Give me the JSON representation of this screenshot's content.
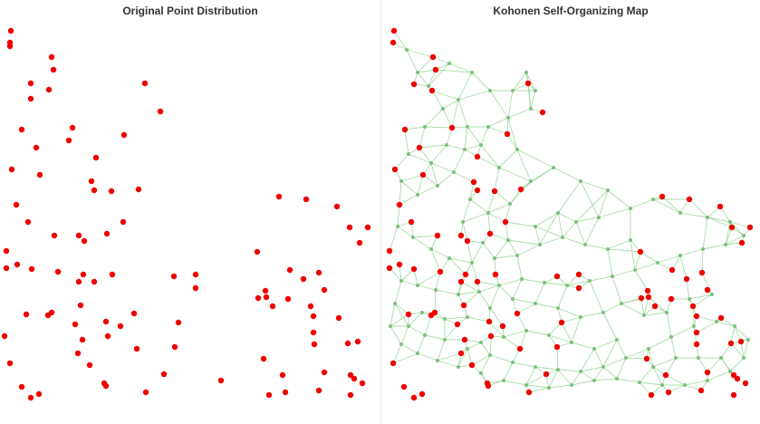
{
  "colors": {
    "point": "#ee0000",
    "point_stroke": "#aa0000",
    "neuron": "#7cc07c",
    "edge": "#8fd08f",
    "background": "#ffffff"
  },
  "chart_data": [
    {
      "type": "scatter",
      "title": "Original Point Distribution",
      "grid": false,
      "xlim": [
        0,
        420
      ],
      "ylim": [
        0,
        468
      ],
      "points": [
        [
          12,
          34
        ],
        [
          11,
          47
        ],
        [
          11,
          51
        ],
        [
          57,
          63
        ],
        [
          59,
          77
        ],
        [
          34,
          92
        ],
        [
          54,
          99
        ],
        [
          34,
          109
        ],
        [
          160,
          92
        ],
        [
          177,
          123
        ],
        [
          24,
          143
        ],
        [
          80,
          141
        ],
        [
          76,
          155
        ],
        [
          40,
          163
        ],
        [
          137,
          149
        ],
        [
          106,
          174
        ],
        [
          13,
          187
        ],
        [
          44,
          193
        ],
        [
          101,
          200
        ],
        [
          104,
          210
        ],
        [
          123,
          211
        ],
        [
          153,
          209
        ],
        [
          18,
          226
        ],
        [
          31,
          245
        ],
        [
          136,
          245
        ],
        [
          87,
          260
        ],
        [
          60,
          260
        ],
        [
          93,
          266
        ],
        [
          118,
          258
        ],
        [
          7,
          277
        ],
        [
          7,
          296
        ],
        [
          19,
          292
        ],
        [
          35,
          297
        ],
        [
          64,
          300
        ],
        [
          92,
          303
        ],
        [
          104,
          311
        ],
        [
          87,
          311
        ],
        [
          124,
          303
        ],
        [
          192,
          305
        ],
        [
          216,
          303
        ],
        [
          216,
          318
        ],
        [
          89,
          337
        ],
        [
          29,
          347
        ],
        [
          53,
          348
        ],
        [
          57,
          345
        ],
        [
          148,
          346
        ],
        [
          83,
          358
        ],
        [
          117,
          355
        ],
        [
          133,
          360
        ],
        [
          197,
          356
        ],
        [
          5,
          371
        ],
        [
          91,
          375
        ],
        [
          119,
          371
        ],
        [
          151,
          385
        ],
        [
          193,
          383
        ],
        [
          86,
          390
        ],
        [
          11,
          401
        ],
        [
          99,
          403
        ],
        [
          181,
          413
        ],
        [
          115,
          423
        ],
        [
          117,
          426
        ],
        [
          24,
          427
        ],
        [
          43,
          435
        ],
        [
          34,
          439
        ],
        [
          161,
          433
        ],
        [
          244,
          420
        ],
        [
          308,
          217
        ],
        [
          338,
          220
        ],
        [
          372,
          228
        ],
        [
          406,
          251
        ],
        [
          386,
          251
        ],
        [
          397,
          268
        ],
        [
          284,
          278
        ],
        [
          320,
          298
        ],
        [
          352,
          301
        ],
        [
          293,
          321
        ],
        [
          285,
          329
        ],
        [
          294,
          328
        ],
        [
          318,
          330
        ],
        [
          335,
          308
        ],
        [
          358,
          320
        ],
        [
          301,
          338
        ],
        [
          343,
          338
        ],
        [
          346,
          349
        ],
        [
          374,
          351
        ],
        [
          346,
          367
        ],
        [
          347,
          380
        ],
        [
          384,
          379
        ],
        [
          395,
          377
        ],
        [
          291,
          396
        ],
        [
          312,
          414
        ],
        [
          358,
          411
        ],
        [
          387,
          414
        ],
        [
          391,
          418
        ],
        [
          400,
          423
        ],
        [
          297,
          436
        ],
        [
          315,
          433
        ],
        [
          352,
          431
        ],
        [
          387,
          436
        ]
      ]
    },
    {
      "type": "network",
      "title": "Kohonen Self-Organizing Map",
      "grid": false,
      "xlim": [
        0,
        418
      ],
      "ylim": [
        0,
        468
      ],
      "red_points": [
        [
          14,
          34
        ],
        [
          13,
          47
        ],
        [
          57,
          63
        ],
        [
          60,
          77
        ],
        [
          36,
          93
        ],
        [
          56,
          100
        ],
        [
          162,
          92
        ],
        [
          178,
          124
        ],
        [
          26,
          143
        ],
        [
          78,
          141
        ],
        [
          42,
          163
        ],
        [
          139,
          148
        ],
        [
          106,
          173
        ],
        [
          15,
          187
        ],
        [
          46,
          193
        ],
        [
          102,
          201
        ],
        [
          106,
          210
        ],
        [
          125,
          211
        ],
        [
          154,
          209
        ],
        [
          20,
          226
        ],
        [
          33,
          245
        ],
        [
          137,
          245
        ],
        [
          88,
          260
        ],
        [
          62,
          260
        ],
        [
          95,
          266
        ],
        [
          120,
          258
        ],
        [
          9,
          277
        ],
        [
          9,
          296
        ],
        [
          20,
          292
        ],
        [
          36,
          297
        ],
        [
          65,
          300
        ],
        [
          93,
          303
        ],
        [
          106,
          311
        ],
        [
          88,
          311
        ],
        [
          126,
          303
        ],
        [
          194,
          305
        ],
        [
          218,
          303
        ],
        [
          218,
          318
        ],
        [
          91,
          337
        ],
        [
          30,
          347
        ],
        [
          55,
          348
        ],
        [
          59,
          345
        ],
        [
          150,
          346
        ],
        [
          84,
          358
        ],
        [
          119,
          355
        ],
        [
          134,
          360
        ],
        [
          199,
          356
        ],
        [
          92,
          375
        ],
        [
          121,
          371
        ],
        [
          153,
          385
        ],
        [
          194,
          383
        ],
        [
          88,
          390
        ],
        [
          13,
          401
        ],
        [
          100,
          403
        ],
        [
          182,
          413
        ],
        [
          117,
          423
        ],
        [
          118,
          426
        ],
        [
          25,
          427
        ],
        [
          45,
          435
        ],
        [
          36,
          439
        ],
        [
          163,
          433
        ],
        [
          310,
          217
        ],
        [
          340,
          220
        ],
        [
          374,
          228
        ],
        [
          407,
          251
        ],
        [
          387,
          251
        ],
        [
          398,
          268
        ],
        [
          286,
          278
        ],
        [
          321,
          298
        ],
        [
          354,
          301
        ],
        [
          294,
          321
        ],
        [
          287,
          329
        ],
        [
          295,
          328
        ],
        [
          320,
          330
        ],
        [
          337,
          308
        ],
        [
          360,
          320
        ],
        [
          302,
          338
        ],
        [
          344,
          338
        ],
        [
          348,
          349
        ],
        [
          375,
          351
        ],
        [
          348,
          367
        ],
        [
          348,
          380
        ],
        [
          386,
          379
        ],
        [
          397,
          377
        ],
        [
          293,
          396
        ],
        [
          314,
          414
        ],
        [
          360,
          411
        ],
        [
          389,
          414
        ],
        [
          393,
          418
        ],
        [
          402,
          423
        ],
        [
          298,
          436
        ],
        [
          317,
          433
        ],
        [
          353,
          431
        ],
        [
          389,
          436
        ]
      ],
      "neurons": [
        [
          28,
          55
        ],
        [
          40,
          80
        ],
        [
          52,
          95
        ],
        [
          75,
          70
        ],
        [
          85,
          110
        ],
        [
          95,
          140
        ],
        [
          110,
          160
        ],
        [
          130,
          185
        ],
        [
          150,
          165
        ],
        [
          165,
          120
        ],
        [
          170,
          100
        ],
        [
          140,
          130
        ],
        [
          120,
          100
        ],
        [
          100,
          80
        ],
        [
          68,
          120
        ],
        [
          48,
          140
        ],
        [
          30,
          170
        ],
        [
          22,
          200
        ],
        [
          40,
          215
        ],
        [
          62,
          205
        ],
        [
          80,
          190
        ],
        [
          98,
          220
        ],
        [
          118,
          235
        ],
        [
          142,
          225
        ],
        [
          165,
          200
        ],
        [
          190,
          185
        ],
        [
          220,
          200
        ],
        [
          250,
          210
        ],
        [
          275,
          230
        ],
        [
          300,
          220
        ],
        [
          330,
          235
        ],
        [
          360,
          240
        ],
        [
          385,
          245
        ],
        [
          400,
          260
        ],
        [
          380,
          270
        ],
        [
          355,
          275
        ],
        [
          330,
          282
        ],
        [
          305,
          290
        ],
        [
          280,
          298
        ],
        [
          255,
          305
        ],
        [
          230,
          310
        ],
        [
          205,
          315
        ],
        [
          180,
          312
        ],
        [
          155,
          308
        ],
        [
          130,
          315
        ],
        [
          108,
          322
        ],
        [
          85,
          325
        ],
        [
          60,
          320
        ],
        [
          40,
          315
        ],
        [
          22,
          310
        ],
        [
          15,
          335
        ],
        [
          30,
          360
        ],
        [
          48,
          370
        ],
        [
          70,
          375
        ],
        [
          95,
          385
        ],
        [
          120,
          392
        ],
        [
          145,
          400
        ],
        [
          170,
          405
        ],
        [
          195,
          408
        ],
        [
          220,
          410
        ],
        [
          245,
          405
        ],
        [
          270,
          395
        ],
        [
          295,
          385
        ],
        [
          320,
          372
        ],
        [
          345,
          360
        ],
        [
          370,
          355
        ],
        [
          390,
          360
        ],
        [
          405,
          375
        ],
        [
          400,
          395
        ],
        [
          385,
          410
        ],
        [
          360,
          420
        ],
        [
          335,
          425
        ],
        [
          310,
          425
        ],
        [
          285,
          422
        ],
        [
          260,
          418
        ],
        [
          235,
          420
        ],
        [
          210,
          425
        ],
        [
          185,
          428
        ],
        [
          160,
          425
        ],
        [
          135,
          420
        ],
        [
          110,
          412
        ],
        [
          85,
          405
        ],
        [
          62,
          398
        ],
        [
          40,
          390
        ],
        [
          22,
          380
        ],
        [
          10,
          360
        ],
        [
          18,
          250
        ],
        [
          35,
          262
        ],
        [
          55,
          275
        ],
        [
          75,
          285
        ],
        [
          100,
          290
        ],
        [
          125,
          285
        ],
        [
          150,
          282
        ],
        [
          175,
          270
        ],
        [
          200,
          262
        ],
        [
          225,
          270
        ],
        [
          250,
          275
        ],
        [
          275,
          265
        ],
        [
          215,
          245
        ],
        [
          240,
          240
        ],
        [
          160,
          80
        ],
        [
          145,
          100
        ],
        [
          118,
          140
        ],
        [
          92,
          165
        ],
        [
          72,
          160
        ],
        [
          55,
          180
        ],
        [
          90,
          245
        ],
        [
          112,
          268
        ],
        [
          140,
          265
        ],
        [
          170,
          250
        ],
        [
          195,
          235
        ],
        [
          265,
          335
        ],
        [
          290,
          348
        ],
        [
          315,
          345
        ],
        [
          340,
          330
        ],
        [
          365,
          325
        ],
        [
          245,
          345
        ],
        [
          220,
          350
        ],
        [
          195,
          340
        ],
        [
          170,
          335
        ],
        [
          145,
          330
        ],
        [
          120,
          340
        ],
        [
          95,
          350
        ],
        [
          70,
          352
        ],
        [
          45,
          345
        ],
        [
          260,
          375
        ],
        [
          235,
          385
        ],
        [
          210,
          378
        ],
        [
          185,
          370
        ],
        [
          160,
          365
        ],
        [
          135,
          372
        ],
        [
          110,
          378
        ],
        [
          325,
          395
        ],
        [
          350,
          395
        ],
        [
          375,
          395
        ],
        [
          300,
          405
        ]
      ],
      "edge_k": 3
    }
  ]
}
